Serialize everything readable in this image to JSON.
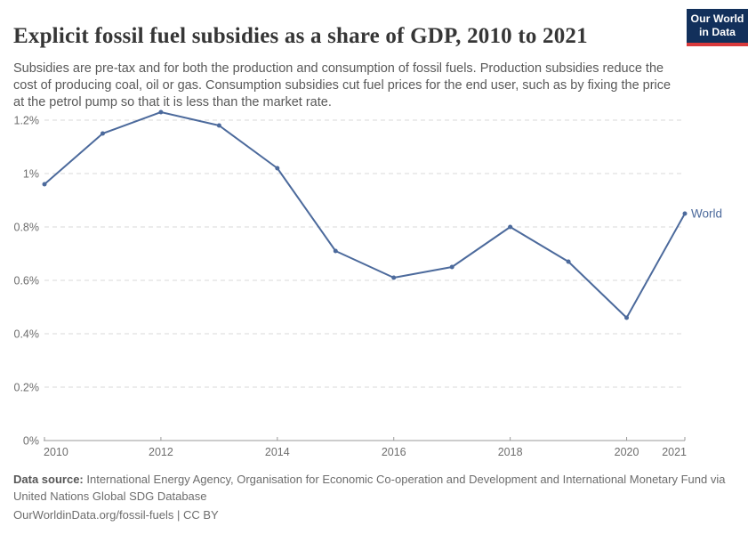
{
  "header": {
    "title": "Explicit fossil fuel subsidies as a share of GDP, 2010 to 2021",
    "subtitle": "Subsidies are pre-tax and for both the production and consumption of fossil fuels. Production subsidies reduce the cost of producing coal, oil or gas. Consumption subsidies cut fuel prices for the end user, such as by fixing the price at the petrol pump so that it is less than the market rate.",
    "logo": {
      "line1": "Our World",
      "line2": "in Data"
    }
  },
  "chart_data": {
    "type": "line",
    "title": "Explicit fossil fuel subsidies as a share of GDP, 2010 to 2021",
    "x": [
      2010,
      2011,
      2012,
      2013,
      2014,
      2015,
      2016,
      2017,
      2018,
      2019,
      2020,
      2021
    ],
    "series": [
      {
        "name": "World",
        "color": "#4c6a9c",
        "values": [
          0.96,
          1.15,
          1.23,
          1.18,
          1.02,
          0.71,
          0.61,
          0.65,
          0.8,
          0.67,
          0.46,
          0.85
        ]
      }
    ],
    "x_tick_years": [
      2010,
      2012,
      2014,
      2016,
      2018,
      2020,
      2021
    ],
    "x_tick_labels": [
      "2010",
      "2012",
      "2014",
      "2016",
      "2018",
      "2020",
      "2021"
    ],
    "y_ticks": [
      0,
      0.2,
      0.4,
      0.6,
      0.8,
      1.0,
      1.2
    ],
    "y_tick_labels": [
      "0%",
      "0.2%",
      "0.4%",
      "0.6%",
      "0.8%",
      "1%",
      "1.2%"
    ],
    "xlim": [
      2010,
      2021
    ],
    "ylim": [
      0,
      1.2
    ],
    "grid": "horizontal-dashed",
    "legend": "end-of-line-label",
    "end_label": "World"
  },
  "footer": {
    "datasource_label": "Data source:",
    "datasource_text": "International Energy Agency, Organisation for Economic Co-operation and Development and International Monetary Fund via United Nations Global SDG Database",
    "attribution": "OurWorldinData.org/fossil-fuels | CC BY"
  },
  "colors": {
    "line": "#4c6a9c",
    "logo_bg": "#12305b",
    "logo_accent": "#d93a3c",
    "title_text": "#363636",
    "subtitle_text": "#595959",
    "axis_text": "#6e6e6e",
    "gridline": "#dadada",
    "axis_line": "#9a9a9a",
    "footer_text": "#6d6d6d"
  }
}
